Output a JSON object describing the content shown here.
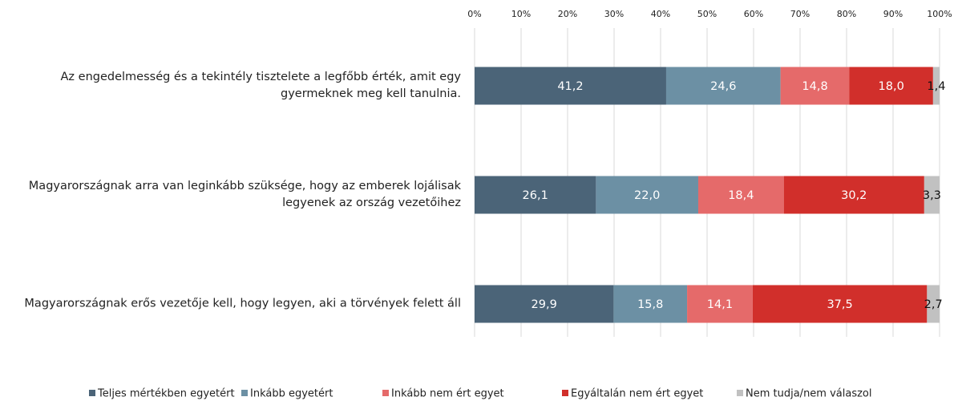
{
  "chart_data": {
    "type": "stacked-bar-horizontal",
    "categories": [
      "Az engedelmesség és a tekintély tisztelete a legfőbb érték, amit egy gyermeknek meg kell tanulnia.",
      "Magyarországnak arra van leginkább szüksége, hogy az emberek lojálisak legyenek az ország vezetőihez",
      "Magyarországnak erős vezetője kell, hogy legyen, aki a törvények felett áll"
    ],
    "series": [
      {
        "name": "Teljes mértékben egyetért",
        "color": "#4b6478",
        "values": [
          41.2,
          26.1,
          29.9
        ],
        "value_labels": [
          "41,2",
          "26,1",
          "29,9"
        ]
      },
      {
        "name": "Inkább egyetért",
        "color": "#6c90a4",
        "values": [
          24.6,
          22.0,
          15.8
        ],
        "value_labels": [
          "24,6",
          "22,0",
          "15,8"
        ]
      },
      {
        "name": "Inkább nem ért egyet",
        "color": "#e56a6a",
        "values": [
          14.8,
          18.4,
          14.1
        ],
        "value_labels": [
          "14,8",
          "18,4",
          "14,1"
        ]
      },
      {
        "name": "Egyáltalán nem ért egyet",
        "color": "#d12f2b",
        "values": [
          18.0,
          30.2,
          37.5
        ],
        "value_labels": [
          "18,0",
          "30,2",
          "37,5"
        ]
      },
      {
        "name": "Nem tudja/nem válaszol",
        "color": "#c1c1c1",
        "values": [
          1.4,
          3.3,
          2.7
        ],
        "value_labels": [
          "1,4",
          "3,3",
          "2,7"
        ]
      }
    ],
    "xlim": [
      0,
      100
    ],
    "xticks": [
      {
        "value": 0,
        "label": "0%"
      },
      {
        "value": 10,
        "label": "10%"
      },
      {
        "value": 20,
        "label": "20%"
      },
      {
        "value": 30,
        "label": "30%"
      },
      {
        "value": 40,
        "label": "40%"
      },
      {
        "value": 50,
        "label": "50%"
      },
      {
        "value": 60,
        "label": "60%"
      },
      {
        "value": 70,
        "label": "70%"
      },
      {
        "value": 80,
        "label": "80%"
      },
      {
        "value": 90,
        "label": "90%"
      },
      {
        "value": 100,
        "label": "100%"
      }
    ],
    "grid": true,
    "legend": "bottom"
  }
}
